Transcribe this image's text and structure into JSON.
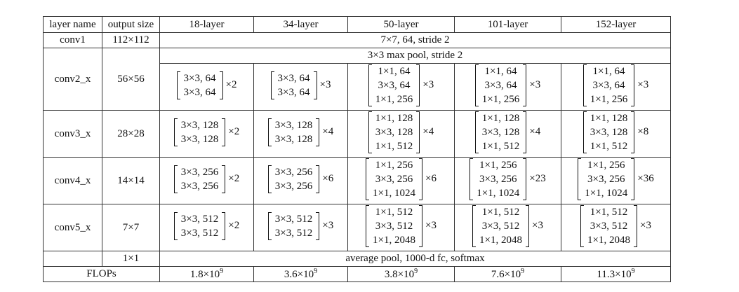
{
  "headers": [
    "layer name",
    "output size",
    "18-layer",
    "34-layer",
    "50-layer",
    "101-layer",
    "152-layer"
  ],
  "conv1": {
    "name": "conv1",
    "output": "112×112",
    "desc": "7×7, 64, stride 2"
  },
  "pool": {
    "desc": "3×3 max pool, stride 2"
  },
  "stages": [
    {
      "name": "conv2_x",
      "output": "56×56",
      "blocks": [
        {
          "lines": [
            "3×3, 64",
            "3×3, 64"
          ],
          "mult": "×2"
        },
        {
          "lines": [
            "3×3, 64",
            "3×3, 64"
          ],
          "mult": "×3"
        },
        {
          "lines": [
            "1×1, 64",
            "3×3, 64",
            "1×1, 256"
          ],
          "mult": "×3"
        },
        {
          "lines": [
            "1×1, 64",
            "3×3, 64",
            "1×1, 256"
          ],
          "mult": "×3"
        },
        {
          "lines": [
            "1×1, 64",
            "3×3, 64",
            "1×1, 256"
          ],
          "mult": "×3"
        }
      ]
    },
    {
      "name": "conv3_x",
      "output": "28×28",
      "blocks": [
        {
          "lines": [
            "3×3, 128",
            "3×3, 128"
          ],
          "mult": "×2"
        },
        {
          "lines": [
            "3×3, 128",
            "3×3, 128"
          ],
          "mult": "×4"
        },
        {
          "lines": [
            "1×1, 128",
            "3×3, 128",
            "1×1, 512"
          ],
          "mult": "×4"
        },
        {
          "lines": [
            "1×1, 128",
            "3×3, 128",
            "1×1, 512"
          ],
          "mult": "×4"
        },
        {
          "lines": [
            "1×1, 128",
            "3×3, 128",
            "1×1, 512"
          ],
          "mult": "×8"
        }
      ]
    },
    {
      "name": "conv4_x",
      "output": "14×14",
      "blocks": [
        {
          "lines": [
            "3×3, 256",
            "3×3, 256"
          ],
          "mult": "×2"
        },
        {
          "lines": [
            "3×3, 256",
            "3×3, 256"
          ],
          "mult": "×6"
        },
        {
          "lines": [
            "1×1, 256",
            "3×3, 256",
            "1×1, 1024"
          ],
          "mult": "×6"
        },
        {
          "lines": [
            "1×1, 256",
            "3×3, 256",
            "1×1, 1024"
          ],
          "mult": "×23"
        },
        {
          "lines": [
            "1×1, 256",
            "3×3, 256",
            "1×1, 1024"
          ],
          "mult": "×36"
        }
      ]
    },
    {
      "name": "conv5_x",
      "output": "7×7",
      "blocks": [
        {
          "lines": [
            "3×3, 512",
            "3×3, 512"
          ],
          "mult": "×2"
        },
        {
          "lines": [
            "3×3, 512",
            "3×3, 512"
          ],
          "mult": "×3"
        },
        {
          "lines": [
            "1×1, 512",
            "3×3, 512",
            "1×1, 2048"
          ],
          "mult": "×3"
        },
        {
          "lines": [
            "1×1, 512",
            "3×3, 512",
            "1×1, 2048"
          ],
          "mult": "×3"
        },
        {
          "lines": [
            "1×1, 512",
            "3×3, 512",
            "1×1, 2048"
          ],
          "mult": "×3"
        }
      ]
    }
  ],
  "final": {
    "output": "1×1",
    "desc": "average pool, 1000-d fc, softmax"
  },
  "flops": {
    "label": "FLOPs",
    "values": [
      {
        "mant": "1.8×10",
        "exp": "9"
      },
      {
        "mant": "3.6×10",
        "exp": "9"
      },
      {
        "mant": "3.8×10",
        "exp": "9"
      },
      {
        "mant": "7.6×10",
        "exp": "9"
      },
      {
        "mant": "11.3×10",
        "exp": "9"
      }
    ]
  }
}
